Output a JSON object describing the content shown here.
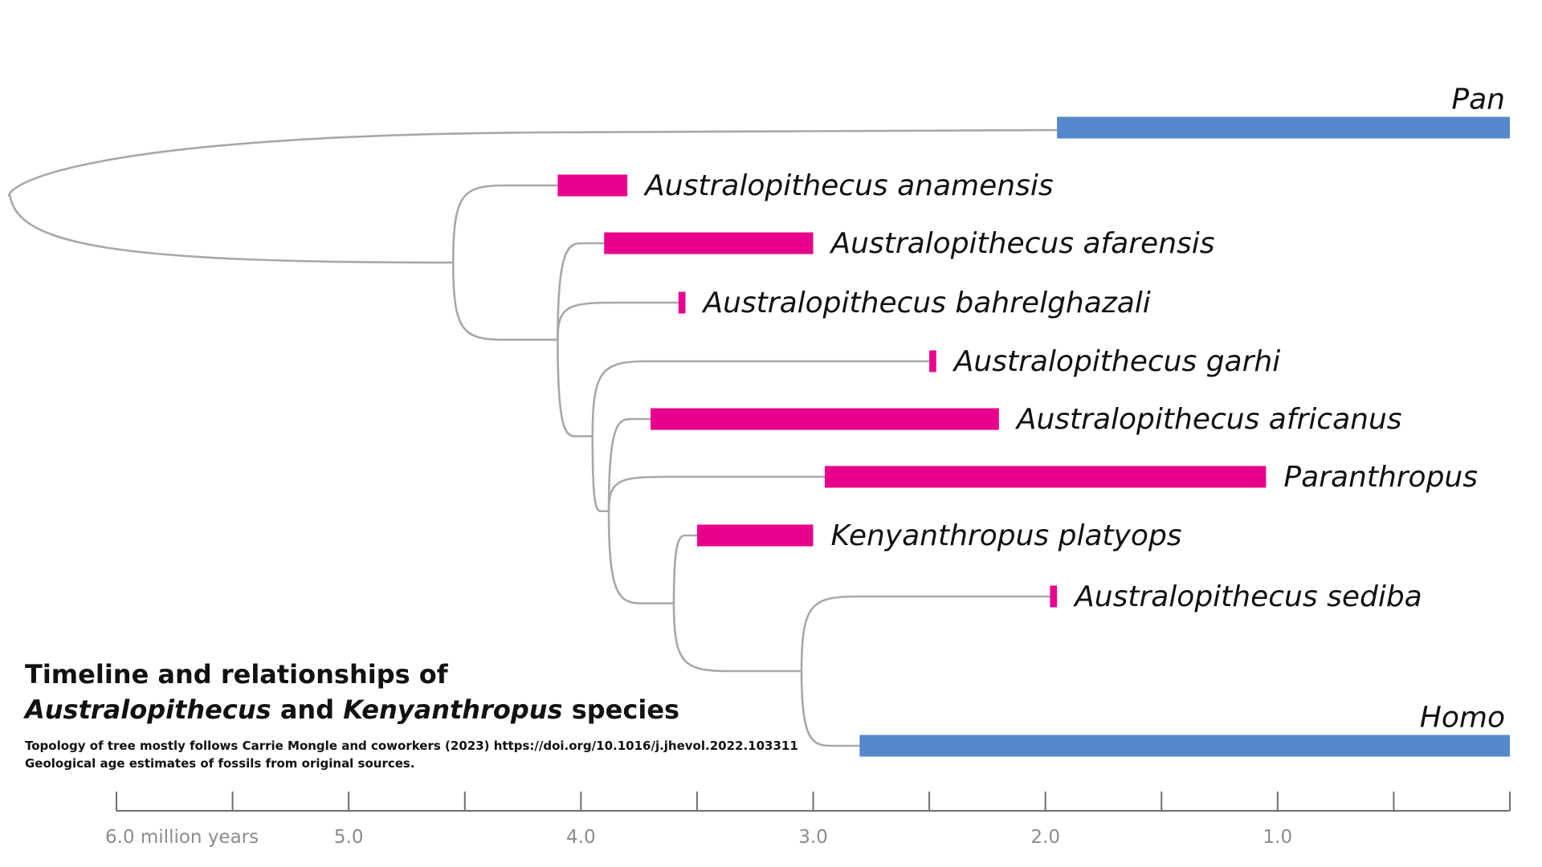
{
  "title": {
    "line1": "Timeline and relationships of",
    "genus1": "Australopithecus",
    "conj": "and",
    "genus2": "Kenyanthropus",
    "tail": "species"
  },
  "notes": {
    "line1": "Topology of tree mostly follows Carrie Mongle and coworkers (2023) https://doi.org/10.1016/j.jhevol.2022.103311",
    "line2": "Geological age estimates of fossils from original sources."
  },
  "colors": {
    "genus_bar": "#5588cc",
    "species_bar": "#e6008c",
    "branch": "#a8a8a8",
    "axis": "#6e6e6e"
  },
  "chart_data": {
    "type": "timeline-phylogeny",
    "x_unit": "million years ago",
    "x_range": [
      6.0,
      0.0
    ],
    "tick_values": [
      6.0,
      5.5,
      5.0,
      4.5,
      4.0,
      3.5,
      3.0,
      2.5,
      2.0,
      1.5,
      1.0,
      0.5,
      0.0
    ],
    "tick_labels": [
      {
        "value": 6.0,
        "text": "6.0 million years"
      },
      {
        "value": 5.0,
        "text": "5.0"
      },
      {
        "value": 4.0,
        "text": "4.0"
      },
      {
        "value": 3.0,
        "text": "3.0"
      },
      {
        "value": 2.0,
        "text": "2.0"
      },
      {
        "value": 1.0,
        "text": "1.0"
      }
    ],
    "taxa": [
      {
        "id": "pan",
        "name": "Pan",
        "start": 1.95,
        "end": 0.0,
        "kind": "genus",
        "label_pos": "above-right"
      },
      {
        "id": "anam",
        "name": "Australopithecus anamensis",
        "start": 4.1,
        "end": 3.8,
        "kind": "species",
        "label_pos": "right"
      },
      {
        "id": "afar",
        "name": "Australopithecus afarensis",
        "start": 3.9,
        "end": 3.0,
        "kind": "species",
        "label_pos": "right"
      },
      {
        "id": "bahr",
        "name": "Australopithecus bahrelghazali",
        "start": 3.58,
        "end": 3.55,
        "kind": "species",
        "label_pos": "right"
      },
      {
        "id": "garhi",
        "name": "Australopithecus garhi",
        "start": 2.5,
        "end": 2.47,
        "kind": "species",
        "label_pos": "right"
      },
      {
        "id": "afric",
        "name": "Australopithecus africanus",
        "start": 3.7,
        "end": 2.2,
        "kind": "species",
        "label_pos": "right"
      },
      {
        "id": "paran",
        "name": "Paranthropus",
        "start": 2.95,
        "end": 1.05,
        "kind": "species",
        "label_pos": "right"
      },
      {
        "id": "kenya",
        "name": "Kenyanthropus platyops",
        "start": 3.5,
        "end": 3.0,
        "kind": "species",
        "label_pos": "right"
      },
      {
        "id": "sediba",
        "name": "Australopithecus sediba",
        "start": 1.98,
        "end": 1.95,
        "kind": "species",
        "label_pos": "right"
      },
      {
        "id": "homo",
        "name": "Homo",
        "start": 2.8,
        "end": 0.0,
        "kind": "genus",
        "label_pos": "above-right"
      }
    ],
    "tree": {
      "root": {
        "age": 6.25,
        "children": [
          "pan",
          "n1"
        ]
      },
      "n1": {
        "age": 4.55,
        "children": [
          "anam",
          "n2"
        ]
      },
      "n2": {
        "age": 4.1,
        "children": [
          "afar",
          "bahr",
          "n3"
        ]
      },
      "n3": {
        "age": 3.95,
        "children": [
          "garhi",
          "n4"
        ]
      },
      "n4": {
        "age": 3.88,
        "children": [
          "afric",
          "paran",
          "n5"
        ]
      },
      "n5": {
        "age": 3.6,
        "children": [
          "kenya",
          "n6"
        ]
      },
      "n6": {
        "age": 3.05,
        "children": [
          "sediba",
          "homo"
        ]
      }
    }
  }
}
